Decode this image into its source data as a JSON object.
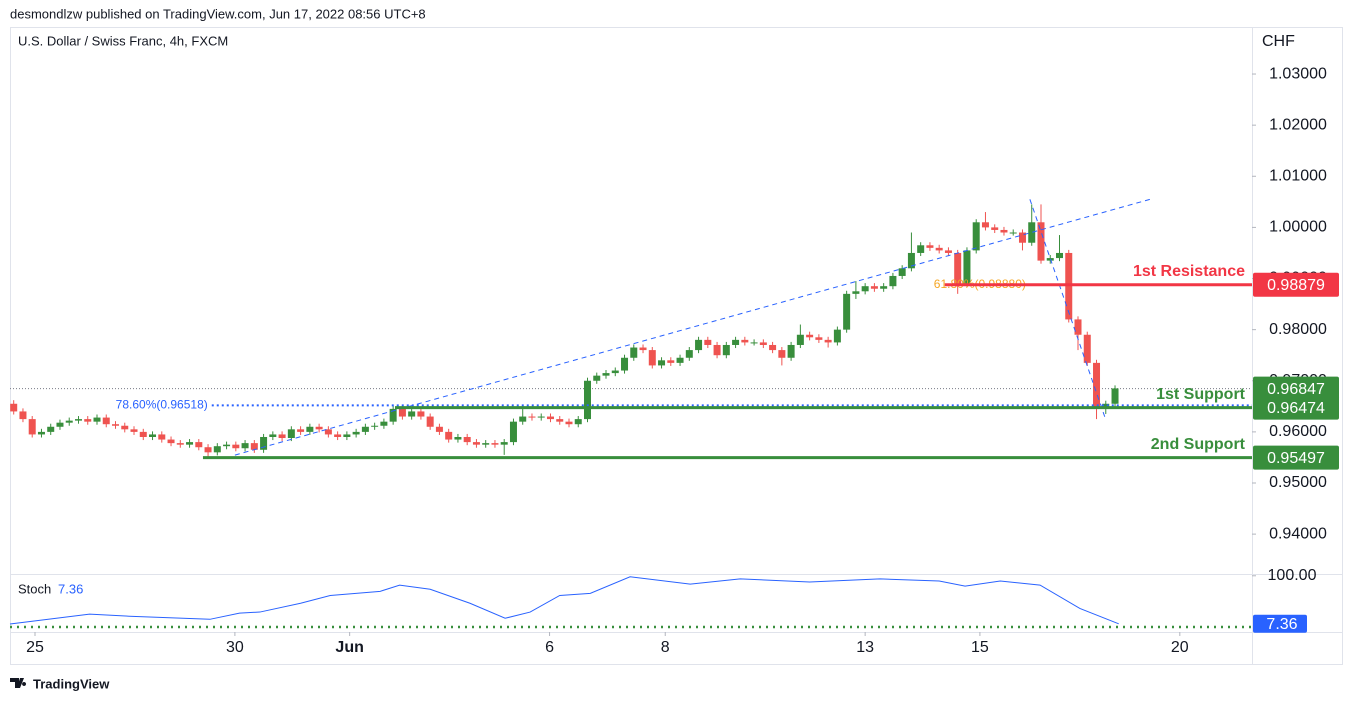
{
  "header": {
    "publisher": "desmondlzw published on TradingView.com, Jun 17, 2022 08:56 UTC+8"
  },
  "footer": {
    "brand": "TradingView"
  },
  "chart_data": {
    "type": "candlestick",
    "title": "U.S. Dollar / Swiss Franc, 4h, FXCM",
    "y_axis_label": "CHF",
    "up_color": "#388e3c",
    "down_color": "#ef5350",
    "x": [
      0,
      1,
      2,
      3,
      4,
      5,
      6,
      7,
      8,
      9,
      10,
      11,
      12,
      13,
      14,
      15,
      16,
      17,
      18,
      19,
      20,
      21,
      22,
      23,
      24,
      25,
      26,
      27,
      28,
      29,
      30,
      31,
      32,
      33,
      34,
      35,
      36,
      37,
      38,
      39,
      40,
      41,
      42,
      43,
      44,
      45,
      46,
      47,
      48,
      49,
      50,
      51,
      52,
      53,
      54,
      55,
      56,
      57,
      58,
      59,
      60,
      61,
      62,
      63,
      64,
      65,
      66,
      67,
      68,
      69,
      70,
      71,
      72,
      73,
      74,
      75,
      76,
      77,
      78,
      79,
      80,
      81,
      82,
      83,
      84,
      85,
      86,
      87,
      88,
      89,
      90,
      91,
      92,
      93,
      94,
      95,
      96,
      97,
      98,
      99,
      100,
      101,
      102,
      103,
      104,
      105,
      106,
      107,
      108,
      109,
      110,
      111,
      112,
      113,
      114,
      115,
      116,
      117,
      118,
      119
    ],
    "open": [
      0.9655,
      0.964,
      0.9625,
      0.9595,
      0.96,
      0.961,
      0.9618,
      0.9622,
      0.9625,
      0.962,
      0.9628,
      0.9615,
      0.9612,
      0.9605,
      0.96,
      0.959,
      0.9595,
      0.9585,
      0.9578,
      0.9575,
      0.958,
      0.957,
      0.956,
      0.9572,
      0.9575,
      0.9568,
      0.9578,
      0.9565,
      0.959,
      0.9595,
      0.9588,
      0.9605,
      0.96,
      0.961,
      0.9605,
      0.9595,
      0.959,
      0.9595,
      0.96,
      0.961,
      0.9612,
      0.962,
      0.9645,
      0.963,
      0.964,
      0.963,
      0.961,
      0.96,
      0.9585,
      0.959,
      0.958,
      0.9575,
      0.9578,
      0.9575,
      0.958,
      0.962,
      0.963,
      0.9628,
      0.963,
      0.9625,
      0.962,
      0.9615,
      0.9625,
      0.97,
      0.971,
      0.9715,
      0.972,
      0.9745,
      0.9765,
      0.976,
      0.973,
      0.974,
      0.9735,
      0.9745,
      0.976,
      0.978,
      0.977,
      0.975,
      0.977,
      0.978,
      0.9775,
      0.9775,
      0.977,
      0.976,
      0.9745,
      0.977,
      0.979,
      0.9785,
      0.978,
      0.9775,
      0.98,
      0.987,
      0.9875,
      0.9885,
      0.988,
      0.9885,
      0.9905,
      0.992,
      0.995,
      0.9965,
      0.996,
      0.9955,
      0.995,
      0.989,
      0.9955,
      1.001,
      1.0,
      0.9995,
      0.999,
      0.999,
      0.997,
      1.001,
      0.9935,
      0.994,
      0.995,
      0.982,
      0.979,
      0.9735,
      0.9645,
      0.9655
    ],
    "high": [
      0.9662,
      0.9646,
      0.9631,
      0.9606,
      0.9616,
      0.9624,
      0.9628,
      0.9631,
      0.9631,
      0.9634,
      0.9634,
      0.9621,
      0.9618,
      0.9611,
      0.9606,
      0.9601,
      0.9601,
      0.9591,
      0.9584,
      0.9586,
      0.9586,
      0.9576,
      0.9578,
      0.9581,
      0.9581,
      0.9584,
      0.9584,
      0.9596,
      0.9601,
      0.9601,
      0.9611,
      0.9611,
      0.9616,
      0.9616,
      0.9611,
      0.9601,
      0.9601,
      0.9606,
      0.9616,
      0.9618,
      0.9626,
      0.9651,
      0.9651,
      0.9646,
      0.9646,
      0.9636,
      0.9616,
      0.9606,
      0.9596,
      0.9596,
      0.9586,
      0.9584,
      0.9584,
      0.9586,
      0.9626,
      0.965,
      0.9636,
      0.9636,
      0.9636,
      0.9631,
      0.9626,
      0.9631,
      0.9706,
      0.9716,
      0.9721,
      0.9726,
      0.9751,
      0.9771,
      0.9771,
      0.9766,
      0.9746,
      0.9746,
      0.9751,
      0.9766,
      0.9786,
      0.9786,
      0.9776,
      0.9776,
      0.9786,
      0.9786,
      0.9781,
      0.9781,
      0.9776,
      0.9766,
      0.9776,
      0.981,
      0.9796,
      0.9791,
      0.9786,
      0.9806,
      0.9876,
      0.9895,
      0.9891,
      0.9891,
      0.9891,
      0.9911,
      0.9926,
      0.999,
      0.9971,
      0.9971,
      0.9966,
      0.9961,
      0.9956,
      0.9961,
      1.0016,
      1.003,
      1.0006,
      1.0001,
      0.9996,
      0.9996,
      1.0045,
      1.0045,
      0.9946,
      0.9985,
      0.9956,
      0.9826,
      0.9796,
      0.9741,
      0.9661,
      0.9691
    ],
    "low": [
      0.9634,
      0.9619,
      0.9589,
      0.9589,
      0.9594,
      0.9604,
      0.9612,
      0.9616,
      0.9614,
      0.9614,
      0.9609,
      0.9606,
      0.9599,
      0.9594,
      0.9584,
      0.9584,
      0.9579,
      0.9572,
      0.9569,
      0.9569,
      0.9564,
      0.955,
      0.9554,
      0.9566,
      0.9562,
      0.9562,
      0.9559,
      0.9559,
      0.9584,
      0.9582,
      0.9582,
      0.9594,
      0.9594,
      0.9599,
      0.9589,
      0.9584,
      0.9584,
      0.9589,
      0.9594,
      0.9604,
      0.9606,
      0.9614,
      0.9624,
      0.9624,
      0.9624,
      0.9604,
      0.9594,
      0.9579,
      0.9579,
      0.9574,
      0.9569,
      0.9569,
      0.9569,
      0.9555,
      0.9574,
      0.9614,
      0.9622,
      0.9622,
      0.9619,
      0.9614,
      0.9609,
      0.9609,
      0.9619,
      0.9694,
      0.9704,
      0.9709,
      0.9714,
      0.9739,
      0.9754,
      0.9724,
      0.9724,
      0.9729,
      0.9729,
      0.9739,
      0.9754,
      0.9764,
      0.9744,
      0.9744,
      0.9764,
      0.9769,
      0.9769,
      0.9764,
      0.9754,
      0.973,
      0.9739,
      0.9764,
      0.9779,
      0.9774,
      0.9765,
      0.9769,
      0.9794,
      0.986,
      0.9869,
      0.9874,
      0.9874,
      0.9879,
      0.9899,
      0.9914,
      0.9944,
      0.9954,
      0.9949,
      0.9944,
      0.987,
      0.9884,
      0.9949,
      0.9994,
      0.9989,
      0.9984,
      0.9984,
      0.9955,
      0.9964,
      0.9929,
      0.9929,
      0.9934,
      0.9814,
      0.976,
      0.9729,
      0.9625,
      0.9635,
      0.9649
    ],
    "close": [
      0.964,
      0.9625,
      0.9595,
      0.96,
      0.961,
      0.9618,
      0.9622,
      0.9625,
      0.962,
      0.9628,
      0.9615,
      0.9612,
      0.9605,
      0.96,
      0.959,
      0.9595,
      0.9585,
      0.9578,
      0.9575,
      0.958,
      0.957,
      0.956,
      0.9572,
      0.9575,
      0.9568,
      0.9578,
      0.9565,
      0.959,
      0.9595,
      0.9588,
      0.9605,
      0.96,
      0.961,
      0.9605,
      0.9595,
      0.959,
      0.9595,
      0.96,
      0.961,
      0.9612,
      0.962,
      0.9645,
      0.963,
      0.964,
      0.963,
      0.961,
      0.96,
      0.9585,
      0.959,
      0.958,
      0.9575,
      0.9578,
      0.9575,
      0.958,
      0.962,
      0.963,
      0.9628,
      0.963,
      0.9625,
      0.962,
      0.9615,
      0.9625,
      0.97,
      0.971,
      0.9715,
      0.972,
      0.9745,
      0.9765,
      0.976,
      0.973,
      0.974,
      0.9735,
      0.9745,
      0.976,
      0.978,
      0.977,
      0.975,
      0.977,
      0.978,
      0.9775,
      0.9775,
      0.977,
      0.976,
      0.9745,
      0.977,
      0.979,
      0.9785,
      0.978,
      0.9775,
      0.98,
      0.987,
      0.9875,
      0.9885,
      0.988,
      0.9885,
      0.9905,
      0.992,
      0.995,
      0.9965,
      0.996,
      0.9955,
      0.995,
      0.989,
      0.9955,
      1.001,
      1.0,
      0.9995,
      0.999,
      0.999,
      0.997,
      1.001,
      0.9935,
      0.994,
      0.995,
      0.982,
      0.979,
      0.9735,
      0.9645,
      0.9655,
      0.9685
    ],
    "xlim": [
      -0.4,
      133.8
    ],
    "xticks": [
      {
        "value": 2.3,
        "label": "25"
      },
      {
        "value": 23.9,
        "label": "30"
      },
      {
        "value": 36.3,
        "label": "Jun"
      },
      {
        "value": 57.9,
        "label": "6"
      },
      {
        "value": 70.4,
        "label": "8"
      },
      {
        "value": 92,
        "label": "13"
      },
      {
        "value": 104.4,
        "label": "15"
      },
      {
        "value": 126,
        "label": "20"
      }
    ],
    "ylim": [
      0.9322,
      1.0392
    ],
    "yticks": [
      {
        "value": 1.03,
        "label": "1.03000"
      },
      {
        "value": 1.02,
        "label": "1.02000"
      },
      {
        "value": 1.01,
        "label": "1.01000"
      },
      {
        "value": 1.0,
        "label": "1.00000"
      },
      {
        "value": 0.99,
        "label": "0.99000"
      },
      {
        "value": 0.98,
        "label": "0.98000"
      },
      {
        "value": 0.97,
        "label": "0.97000"
      },
      {
        "value": 0.96,
        "label": "0.96000"
      },
      {
        "value": 0.95,
        "label": "0.95000"
      },
      {
        "value": 0.94,
        "label": "0.94000"
      }
    ],
    "last_price": 0.96847,
    "levels": [
      {
        "name": "1st Resistance",
        "value": 0.98879,
        "from": 100.6,
        "color": "#f23645"
      },
      {
        "name": "1st Support",
        "value": 0.96474,
        "from": 41.2,
        "color": "#388e3c"
      },
      {
        "name": "2nd Support",
        "value": 0.95497,
        "from": 20.45,
        "color": "#388e3c"
      }
    ],
    "fib_levels": [
      {
        "label": "78.60%(0.96518)",
        "value": 0.96518,
        "from": 21.4,
        "color": "#2962ff"
      },
      {
        "label": "61.80%(0.98880)",
        "value": 0.9888,
        "from": 109.8,
        "color": "#f5a623"
      }
    ],
    "trendline": {
      "x": [
        23.9,
        122.8
      ],
      "y": [
        0.95546,
        1.0055
      ],
      "color": "#2962ff"
    },
    "fib_line": {
      "x": [
        109.8,
        117.9
      ],
      "y": [
        1.0055,
        0.9629
      ],
      "color": "#2962ff"
    },
    "stoch": {
      "name": "Stoch",
      "color": "#2962ff",
      "ylim": [
        0,
        101.5
      ],
      "yticks": [
        {
          "value": 100,
          "label": "100.00"
        }
      ],
      "x": [
        -0.4,
        8.2,
        12.5,
        21.2,
        24.4,
        26.6,
        31,
        34.2,
        39.6,
        41.7,
        45,
        49.3,
        53.1,
        55.8,
        59,
        62.3,
        66.6,
        73.1,
        78.5,
        86,
        93.6,
        100,
        102.8,
        106.6,
        110.9,
        115.2,
        119.4
      ],
      "values": [
        7,
        26,
        22,
        16,
        28,
        30,
        47,
        62,
        70,
        82,
        74,
        47,
        18,
        30,
        62,
        66,
        98,
        84,
        94,
        88,
        94,
        90,
        80,
        90,
        82,
        37,
        7.36
      ]
    }
  }
}
